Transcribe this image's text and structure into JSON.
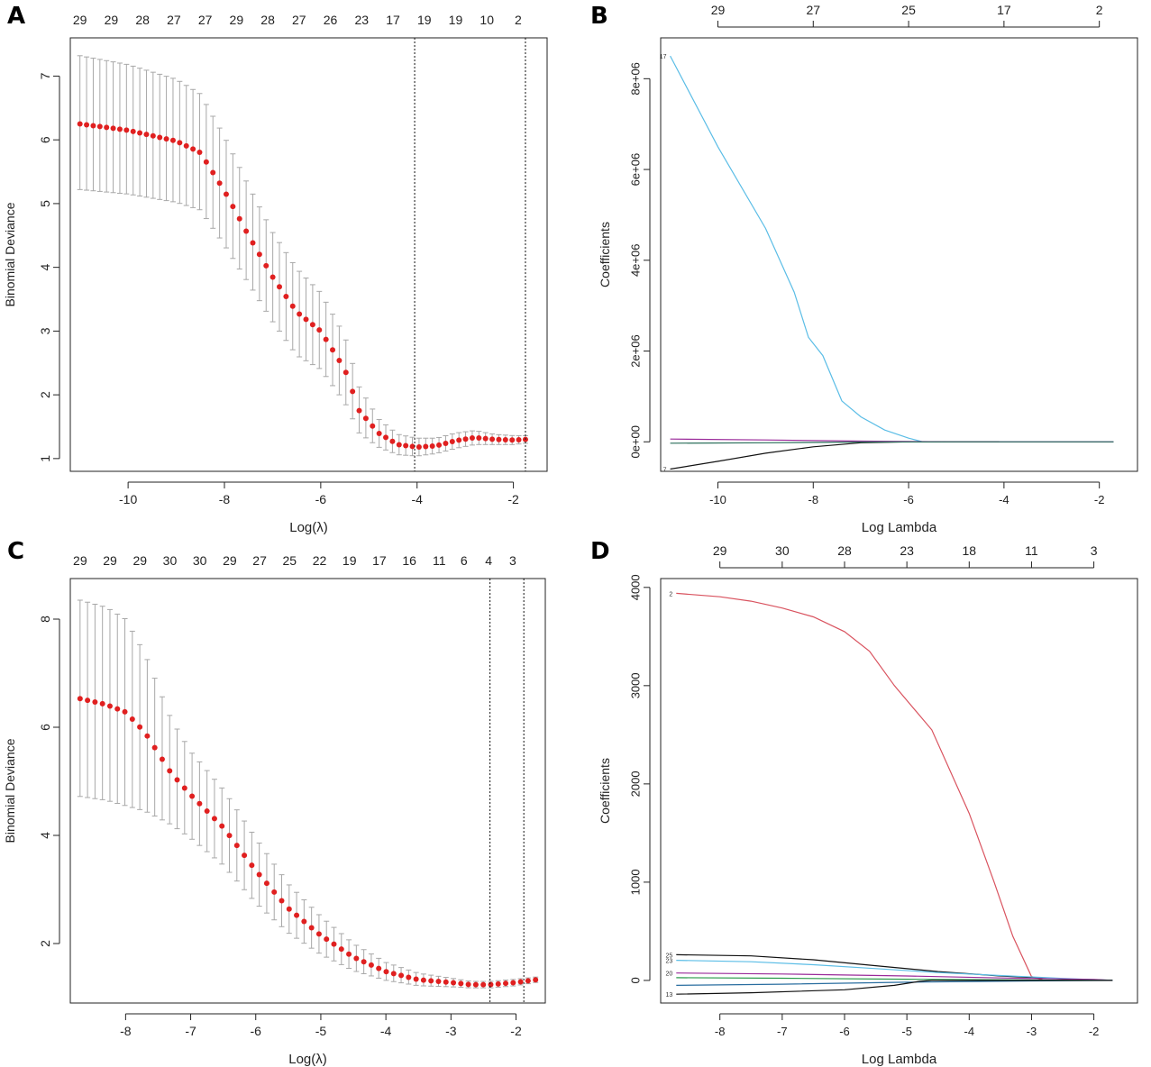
{
  "chart_data": [
    {
      "panel": "A",
      "type": "scatter",
      "subtype": "cv-deviance-with-error-bars",
      "xlabel": "Log(λ)",
      "ylabel": "Binomial Deviance",
      "xlim": [
        -11.2,
        -1.3
      ],
      "ylim": [
        0.8,
        7.6
      ],
      "xticks": [
        -10,
        -8,
        -6,
        -4,
        -2
      ],
      "yticks": [
        1,
        2,
        3,
        4,
        5,
        6,
        7
      ],
      "top_ticks": [
        {
          "x": -11.0,
          "label": "29"
        },
        {
          "x": -10.35,
          "label": "29"
        },
        {
          "x": -9.7,
          "label": "28"
        },
        {
          "x": -9.05,
          "label": "27"
        },
        {
          "x": -8.4,
          "label": "27"
        },
        {
          "x": -7.75,
          "label": "29"
        },
        {
          "x": -7.1,
          "label": "28"
        },
        {
          "x": -6.45,
          "label": "27"
        },
        {
          "x": -5.8,
          "label": "26"
        },
        {
          "x": -5.15,
          "label": "23"
        },
        {
          "x": -4.5,
          "label": "17"
        },
        {
          "x": -3.85,
          "label": "19"
        },
        {
          "x": -3.2,
          "label": "19"
        },
        {
          "x": -2.55,
          "label": "10"
        },
        {
          "x": -1.9,
          "label": "2"
        }
      ],
      "vlines": [
        -4.05,
        -1.75
      ],
      "curve": [
        [
          -11.0,
          6.25
        ],
        [
          -10.0,
          6.15
        ],
        [
          -9.0,
          5.98
        ],
        [
          -8.5,
          5.8
        ],
        [
          -8.0,
          5.2
        ],
        [
          -7.5,
          4.5
        ],
        [
          -7.0,
          3.85
        ],
        [
          -6.5,
          3.3
        ],
        [
          -6.0,
          3.0
        ],
        [
          -5.5,
          2.4
        ],
        [
          -5.2,
          1.75
        ],
        [
          -4.8,
          1.4
        ],
        [
          -4.4,
          1.22
        ],
        [
          -4.0,
          1.18
        ],
        [
          -3.6,
          1.2
        ],
        [
          -3.2,
          1.28
        ],
        [
          -2.8,
          1.33
        ],
        [
          -2.4,
          1.3
        ],
        [
          -2.0,
          1.29
        ],
        [
          -1.75,
          1.3
        ]
      ],
      "sd_lower": [
        [
          -11.0,
          5.22
        ],
        [
          -10.0,
          5.15
        ],
        [
          -9.0,
          5.02
        ],
        [
          -8.5,
          4.9
        ],
        [
          -8.0,
          4.35
        ],
        [
          -7.5,
          3.75
        ],
        [
          -7.0,
          3.15
        ],
        [
          -6.5,
          2.62
        ],
        [
          -6.0,
          2.4
        ],
        [
          -5.5,
          1.88
        ],
        [
          -5.2,
          1.4
        ],
        [
          -4.8,
          1.18
        ],
        [
          -4.4,
          1.06
        ],
        [
          -4.0,
          1.04
        ],
        [
          -3.6,
          1.08
        ],
        [
          -3.2,
          1.16
        ],
        [
          -2.8,
          1.22
        ],
        [
          -2.4,
          1.22
        ],
        [
          -2.0,
          1.22
        ],
        [
          -1.75,
          1.24
        ]
      ],
      "sd_upper": [
        [
          -11.0,
          7.32
        ],
        [
          -10.0,
          7.18
        ],
        [
          -9.0,
          6.95
        ],
        [
          -8.5,
          6.72
        ],
        [
          -8.0,
          6.05
        ],
        [
          -7.5,
          5.28
        ],
        [
          -7.0,
          4.55
        ],
        [
          -6.5,
          3.98
        ],
        [
          -6.0,
          3.6
        ],
        [
          -5.5,
          2.92
        ],
        [
          -5.2,
          2.12
        ],
        [
          -4.8,
          1.62
        ],
        [
          -4.4,
          1.38
        ],
        [
          -4.0,
          1.32
        ],
        [
          -3.6,
          1.32
        ],
        [
          -3.2,
          1.4
        ],
        [
          -2.8,
          1.44
        ],
        [
          -2.4,
          1.38
        ],
        [
          -2.0,
          1.36
        ],
        [
          -1.75,
          1.36
        ]
      ],
      "n_points": 68
    },
    {
      "panel": "B",
      "type": "line",
      "subtype": "coefficient-paths",
      "xlabel": "Log Lambda",
      "ylabel": "Coefficients",
      "xlim": [
        -11.2,
        -1.2
      ],
      "ylim": [
        -650000,
        8900000
      ],
      "xticks": [
        -10,
        -8,
        -6,
        -4,
        -2
      ],
      "yticks": [
        0,
        2000000,
        4000000,
        6000000,
        8000000
      ],
      "ytick_labels": [
        "0e+00",
        "2e+06",
        "4e+06",
        "6e+06",
        "8e+06"
      ],
      "top_ticks": [
        {
          "x": -10,
          "label": "29"
        },
        {
          "x": -8,
          "label": "27"
        },
        {
          "x": -6,
          "label": "25"
        },
        {
          "x": -4,
          "label": "17"
        },
        {
          "x": -2,
          "label": "2"
        }
      ],
      "series": [
        {
          "name": "17",
          "color": "#5bbde6",
          "points": [
            [
              -11.0,
              8500000
            ],
            [
              -10.0,
              6500000
            ],
            [
              -9.0,
              4700000
            ],
            [
              -8.4,
              3300000
            ],
            [
              -8.1,
              2300000
            ],
            [
              -7.8,
              1900000
            ],
            [
              -7.4,
              900000
            ],
            [
              -7.0,
              550000
            ],
            [
              -6.5,
              260000
            ],
            [
              -6.0,
              80000
            ],
            [
              -5.7,
              0
            ],
            [
              -1.7,
              0
            ]
          ]
        },
        {
          "name": "7",
          "color": "#111111",
          "points": [
            [
              -11.0,
              -600000
            ],
            [
              -10.0,
              -430000
            ],
            [
              -9.0,
              -250000
            ],
            [
              -8.0,
              -110000
            ],
            [
              -7.0,
              -20000
            ],
            [
              -6.0,
              0
            ],
            [
              -4.1,
              0
            ]
          ]
        },
        {
          "name": "",
          "color": "#9a2a9a",
          "points": [
            [
              -11.0,
              60000
            ],
            [
              -9.0,
              40000
            ],
            [
              -7.0,
              15000
            ],
            [
              -5.0,
              0
            ],
            [
              -1.7,
              0
            ]
          ]
        },
        {
          "name": "",
          "color": "#2a6e5a",
          "points": [
            [
              -11.0,
              -30000
            ],
            [
              -9.0,
              -20000
            ],
            [
              -7.0,
              -5000
            ],
            [
              -5.0,
              0
            ],
            [
              -1.7,
              0
            ]
          ]
        }
      ]
    },
    {
      "panel": "C",
      "type": "scatter",
      "subtype": "cv-deviance-with-error-bars",
      "xlabel": "Log(λ)",
      "ylabel": "Binomial Deviance",
      "xlim": [
        -8.85,
        -1.55
      ],
      "ylim": [
        0.9,
        8.75
      ],
      "xticks": [
        -8,
        -7,
        -6,
        -5,
        -4,
        -3,
        -2
      ],
      "yticks": [
        2,
        4,
        6,
        8
      ],
      "top_ticks": [
        {
          "x": -8.7,
          "label": "29"
        },
        {
          "x": -8.24,
          "label": "29"
        },
        {
          "x": -7.78,
          "label": "29"
        },
        {
          "x": -7.32,
          "label": "30"
        },
        {
          "x": -6.86,
          "label": "30"
        },
        {
          "x": -6.4,
          "label": "29"
        },
        {
          "x": -5.94,
          "label": "27"
        },
        {
          "x": -5.48,
          "label": "25"
        },
        {
          "x": -5.02,
          "label": "22"
        },
        {
          "x": -4.56,
          "label": "19"
        },
        {
          "x": -4.1,
          "label": "17"
        },
        {
          "x": -3.64,
          "label": "16"
        },
        {
          "x": -3.18,
          "label": "11"
        },
        {
          "x": -2.8,
          "label": "6"
        },
        {
          "x": -2.42,
          "label": "4"
        },
        {
          "x": -2.05,
          "label": "3"
        }
      ],
      "vlines": [
        -2.4,
        -1.88
      ],
      "curve": [
        [
          -8.7,
          6.53
        ],
        [
          -8.3,
          6.42
        ],
        [
          -8.0,
          6.28
        ],
        [
          -7.7,
          5.9
        ],
        [
          -7.3,
          5.15
        ],
        [
          -7.0,
          4.75
        ],
        [
          -6.5,
          4.15
        ],
        [
          -6.0,
          3.35
        ],
        [
          -5.5,
          2.65
        ],
        [
          -5.0,
          2.15
        ],
        [
          -4.5,
          1.75
        ],
        [
          -4.0,
          1.48
        ],
        [
          -3.5,
          1.33
        ],
        [
          -3.0,
          1.28
        ],
        [
          -2.7,
          1.24
        ],
        [
          -2.4,
          1.24
        ],
        [
          -2.0,
          1.28
        ],
        [
          -1.7,
          1.33
        ]
      ],
      "sd_lower": [
        [
          -8.7,
          4.72
        ],
        [
          -8.3,
          4.65
        ],
        [
          -8.0,
          4.55
        ],
        [
          -7.7,
          4.45
        ],
        [
          -7.3,
          4.2
        ],
        [
          -7.0,
          3.95
        ],
        [
          -6.5,
          3.45
        ],
        [
          -6.0,
          2.75
        ],
        [
          -5.5,
          2.2
        ],
        [
          -5.0,
          1.8
        ],
        [
          -4.5,
          1.5
        ],
        [
          -4.0,
          1.32
        ],
        [
          -3.5,
          1.22
        ],
        [
          -3.0,
          1.2
        ],
        [
          -2.7,
          1.18
        ],
        [
          -2.4,
          1.18
        ],
        [
          -2.0,
          1.22
        ],
        [
          -1.7,
          1.28
        ]
      ],
      "sd_upper": [
        [
          -8.7,
          8.35
        ],
        [
          -8.3,
          8.22
        ],
        [
          -8.0,
          8.0
        ],
        [
          -7.7,
          7.35
        ],
        [
          -7.3,
          6.15
        ],
        [
          -7.0,
          5.55
        ],
        [
          -6.5,
          4.85
        ],
        [
          -6.0,
          3.95
        ],
        [
          -5.5,
          3.1
        ],
        [
          -5.0,
          2.5
        ],
        [
          -4.5,
          2.0
        ],
        [
          -4.0,
          1.65
        ],
        [
          -3.5,
          1.45
        ],
        [
          -3.0,
          1.36
        ],
        [
          -2.7,
          1.3
        ],
        [
          -2.4,
          1.3
        ],
        [
          -2.0,
          1.34
        ],
        [
          -1.7,
          1.38
        ]
      ],
      "n_points": 62
    },
    {
      "panel": "D",
      "type": "line",
      "subtype": "coefficient-paths",
      "xlabel": "Log Lambda",
      "ylabel": "Coefficients",
      "xlim": [
        -8.95,
        -1.3
      ],
      "ylim": [
        -230,
        4090
      ],
      "xticks": [
        -8,
        -7,
        -6,
        -5,
        -4,
        -3,
        -2
      ],
      "yticks": [
        0,
        1000,
        2000,
        3000,
        4000
      ],
      "ytick_labels": [
        "0",
        "1000",
        "2000",
        "3000",
        "4000"
      ],
      "top_ticks": [
        {
          "x": -8,
          "label": "29"
        },
        {
          "x": -7,
          "label": "30"
        },
        {
          "x": -6,
          "label": "28"
        },
        {
          "x": -5,
          "label": "23"
        },
        {
          "x": -4,
          "label": "18"
        },
        {
          "x": -3,
          "label": "11"
        },
        {
          "x": -2,
          "label": "3"
        }
      ],
      "series": [
        {
          "name": "2",
          "color": "#d9535f",
          "points": [
            [
              -8.7,
              3940
            ],
            [
              -8.0,
              3905
            ],
            [
              -7.5,
              3860
            ],
            [
              -7.0,
              3790
            ],
            [
              -6.5,
              3700
            ],
            [
              -6.0,
              3550
            ],
            [
              -5.6,
              3350
            ],
            [
              -5.2,
              3000
            ],
            [
              -4.6,
              2550
            ],
            [
              -4.0,
              1700
            ],
            [
              -3.6,
              1000
            ],
            [
              -3.3,
              450
            ],
            [
              -3.0,
              40
            ],
            [
              -2.8,
              0
            ],
            [
              -1.7,
              0
            ]
          ]
        },
        {
          "name": "25",
          "color": "#111111",
          "points": [
            [
              -8.7,
              262
            ],
            [
              -7.5,
              250
            ],
            [
              -6.5,
              210
            ],
            [
              -5.5,
              150
            ],
            [
              -4.5,
              90
            ],
            [
              -3.5,
              45
            ],
            [
              -2.5,
              15
            ],
            [
              -1.7,
              0
            ]
          ]
        },
        {
          "name": "23",
          "color": "#5bbde6",
          "points": [
            [
              -8.7,
              205
            ],
            [
              -7.5,
              190
            ],
            [
              -6.5,
              160
            ],
            [
              -5.5,
              120
            ],
            [
              -4.5,
              80
            ],
            [
              -3.5,
              50
            ],
            [
              -2.5,
              20
            ],
            [
              -1.7,
              0
            ]
          ]
        },
        {
          "name": "20",
          "color": "#9a2a9a",
          "points": [
            [
              -8.7,
              75
            ],
            [
              -7.0,
              65
            ],
            [
              -5.0,
              45
            ],
            [
              -3.5,
              25
            ],
            [
              -2.0,
              10
            ],
            [
              -1.7,
              0
            ]
          ]
        },
        {
          "name": "",
          "color": "#2a9a4a",
          "points": [
            [
              -8.7,
              28
            ],
            [
              -7.0,
              22
            ],
            [
              -5.0,
              12
            ],
            [
              -3.0,
              4
            ],
            [
              -1.7,
              0
            ]
          ]
        },
        {
          "name": "",
          "color": "#2a6ea0",
          "points": [
            [
              -8.7,
              -50
            ],
            [
              -7.0,
              -38
            ],
            [
              -5.0,
              -18
            ],
            [
              -3.0,
              -5
            ],
            [
              -1.7,
              0
            ]
          ]
        },
        {
          "name": "13",
          "color": "#111111",
          "points": [
            [
              -8.7,
              -140
            ],
            [
              -7.5,
              -125
            ],
            [
              -6.0,
              -95
            ],
            [
              -5.2,
              -50
            ],
            [
              -4.8,
              -10
            ],
            [
              -4.6,
              0
            ],
            [
              -1.7,
              0
            ]
          ]
        }
      ]
    }
  ],
  "panels": {
    "A": {
      "label": "A"
    },
    "B": {
      "label": "B"
    },
    "C": {
      "label": "C"
    },
    "D": {
      "label": "D"
    }
  },
  "colors": {
    "point": "#e02020",
    "errorbar": "#a8a8a8",
    "axis": "#222222"
  }
}
